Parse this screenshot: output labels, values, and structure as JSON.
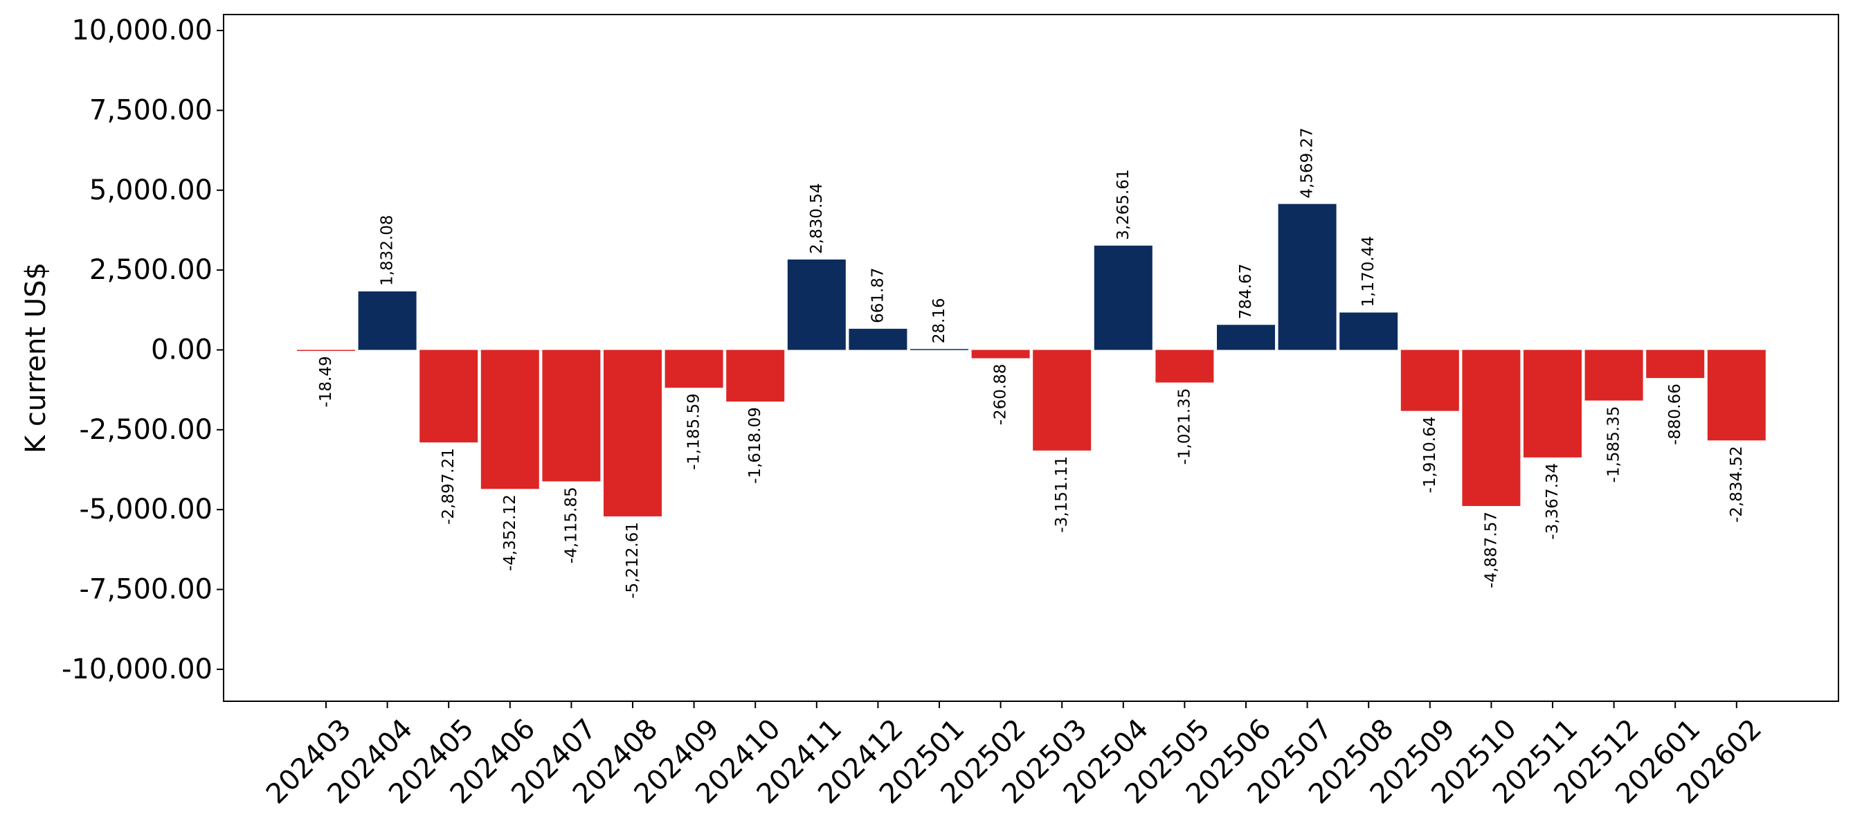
{
  "chart_data": {
    "type": "bar",
    "title": "",
    "xlabel": "",
    "ylabel": "K current US$",
    "ylim": [
      -11000,
      10500
    ],
    "yticks": [
      10000,
      7500,
      5000,
      2500,
      0,
      -2500,
      -5000,
      -7500,
      -10000
    ],
    "ytick_labels": [
      "10,000.00",
      "7,500.00",
      "5,000.00",
      "2,500.00",
      "0.00",
      "-2,500.00",
      "-5,000.00",
      "-7,500.00",
      "-10,000.00"
    ],
    "grid": false,
    "colors": {
      "positive": "#0d2c5e",
      "negative": "#dc2626"
    },
    "categories": [
      "202403",
      "202404",
      "202405",
      "202406",
      "202407",
      "202408",
      "202409",
      "202410",
      "202411",
      "202412",
      "202501",
      "202502",
      "202503",
      "202504",
      "202505",
      "202506",
      "202507",
      "202508",
      "202509",
      "202510",
      "202511",
      "202512",
      "202601",
      "202602"
    ],
    "values": [
      -18.49,
      1832.08,
      -2897.21,
      -4352.12,
      -4115.85,
      -5212.61,
      -1185.59,
      -1618.09,
      2830.54,
      661.87,
      28.16,
      -260.88,
      -3151.11,
      3265.61,
      -1021.35,
      784.67,
      4569.27,
      1170.44,
      -1910.64,
      -4887.57,
      -3367.34,
      -1585.35,
      -880.66,
      -2834.52
    ],
    "value_labels": [
      "-18.49",
      "1,832.08",
      "-2,897.21",
      "-4,352.12",
      "-4,115.85",
      "-5,212.61",
      "-1,185.59",
      "-1,618.09",
      "2,830.54",
      "661.87",
      "28.16",
      "-260.88",
      "-3,151.11",
      "3,265.61",
      "-1,021.35",
      "784.67",
      "4,569.27",
      "1,170.44",
      "-1,910.64",
      "-4,887.57",
      "-3,367.34",
      "-1,585.35",
      "-880.66",
      "-2,834.52"
    ]
  }
}
